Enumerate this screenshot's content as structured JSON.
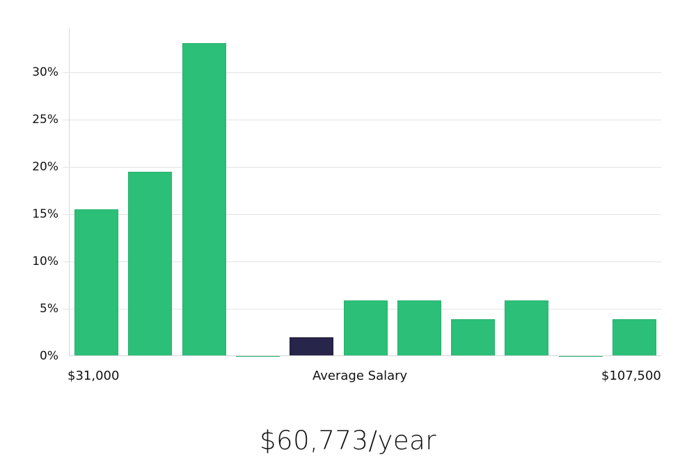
{
  "chart_data": {
    "type": "bar",
    "title": "",
    "xlabel": "Average Salary",
    "ylabel": "",
    "ylim": [
      0,
      34
    ],
    "yticks": [
      "0%",
      "5%",
      "10%",
      "15%",
      "20%",
      "25%",
      "30%"
    ],
    "categories": [
      "bin1",
      "bin2",
      "bin3",
      "bin4",
      "bin5",
      "bin6",
      "bin7",
      "bin8",
      "bin9",
      "bin10",
      "bin11"
    ],
    "values": [
      15.5,
      19.5,
      33.1,
      0,
      2.0,
      5.9,
      5.9,
      3.9,
      5.9,
      0,
      3.9
    ],
    "highlight_index": 4,
    "x_min_label": "$31,000",
    "x_max_label": "$107,500",
    "grid": true,
    "colors": {
      "bar": "#2bbf78",
      "highlight": "#27254a"
    }
  },
  "labels": {
    "x_min": "$31,000",
    "x_center": "Average Salary",
    "x_max": "$107,500",
    "salary": "$60,773/year"
  }
}
